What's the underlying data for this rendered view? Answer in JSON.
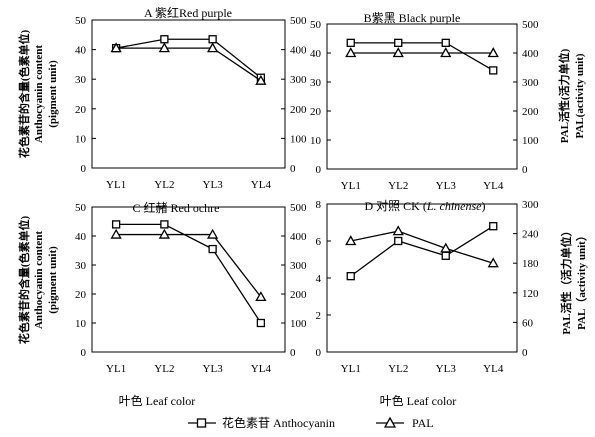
{
  "left_axis_title": {
    "line1": "花色素苷的含量(色素单位)",
    "line2": "Anthocyanin content",
    "line3": "(pigment unit)"
  },
  "right_axis_title": {
    "line1": "PAL活性(活力单位)",
    "line2": "PAL(activity unit)"
  },
  "right_axis_title_d": {
    "line1": "PAL活性（活力单位）",
    "line2": "PAL（activity unit）"
  },
  "x_axis_title": "叶色  Leaf color",
  "legend": {
    "anthocyanin": "花色素苷 Anthocyanin",
    "pal": "PAL"
  },
  "colors": {
    "line": "#000000",
    "background": "#ffffff"
  },
  "chart_data": [
    {
      "id": "A",
      "type": "line",
      "title": "A 紫红Red purple",
      "categories": [
        "YL1",
        "YL2",
        "YL3",
        "YL4"
      ],
      "series": [
        {
          "name": "花色素苷 Anthocyanin",
          "marker": "square",
          "axis": "left",
          "values": [
            40.5,
            43.5,
            43.5,
            30.5
          ]
        },
        {
          "name": "PAL",
          "marker": "triangle",
          "axis": "right",
          "values": [
            405,
            405,
            405,
            295
          ]
        }
      ],
      "left_ticks": [
        "0",
        "10",
        "20",
        "30",
        "40",
        "50"
      ],
      "right_ticks": [
        "0",
        "100",
        "200",
        "300",
        "400",
        "500"
      ],
      "ylim_left": [
        0,
        50
      ],
      "ylim_right": [
        0,
        500
      ]
    },
    {
      "id": "B",
      "type": "line",
      "title": "B紫黑 Black purple",
      "categories": [
        "YL1",
        "YL2",
        "YL3",
        "YL4"
      ],
      "series": [
        {
          "name": "花色素苷 Anthocyanin",
          "marker": "square",
          "axis": "left",
          "values": [
            43.5,
            43.5,
            43.5,
            34
          ]
        },
        {
          "name": "PAL",
          "marker": "triangle",
          "axis": "right",
          "values": [
            400,
            400,
            400,
            400
          ]
        }
      ],
      "left_ticks": [
        "0",
        "10",
        "20",
        "30",
        "40",
        "50"
      ],
      "right_ticks": [
        "0",
        "100",
        "200",
        "300",
        "400",
        "500"
      ],
      "ylim_left": [
        0,
        50
      ],
      "ylim_right": [
        0,
        500
      ]
    },
    {
      "id": "C",
      "type": "line",
      "title": "C 红赭 Red ochre",
      "categories": [
        "YL1",
        "YL2",
        "YL3",
        "YL4"
      ],
      "series": [
        {
          "name": "花色素苷 Anthocyanin",
          "marker": "square",
          "axis": "left",
          "values": [
            44,
            44,
            35.5,
            10
          ]
        },
        {
          "name": "PAL",
          "marker": "triangle",
          "axis": "right",
          "values": [
            405,
            405,
            405,
            190
          ]
        }
      ],
      "left_ticks": [
        "0",
        "10",
        "20",
        "30",
        "40",
        "50"
      ],
      "right_ticks": [
        "0",
        "100",
        "200",
        "300",
        "400",
        "500"
      ],
      "ylim_left": [
        0,
        50
      ],
      "ylim_right": [
        0,
        500
      ]
    },
    {
      "id": "D",
      "type": "line",
      "title": "D 对照 CK (",
      "title_italic": "L. chinense",
      "title_end": ")",
      "categories": [
        "YL1",
        "YL2",
        "YL3",
        "YL4"
      ],
      "series": [
        {
          "name": "花色素苷 Anthocyanin",
          "marker": "square",
          "axis": "left",
          "values": [
            4.1,
            6.0,
            5.2,
            6.8
          ]
        },
        {
          "name": "PAL",
          "marker": "triangle",
          "axis": "right",
          "values": [
            225,
            245,
            210,
            180
          ]
        }
      ],
      "left_ticks": [
        "0",
        "2",
        "4",
        "6",
        "8"
      ],
      "right_ticks": [
        "0",
        "60",
        "120",
        "180",
        "240",
        "300"
      ],
      "ylim_left": [
        0,
        8
      ],
      "ylim_right": [
        0,
        300
      ]
    }
  ]
}
